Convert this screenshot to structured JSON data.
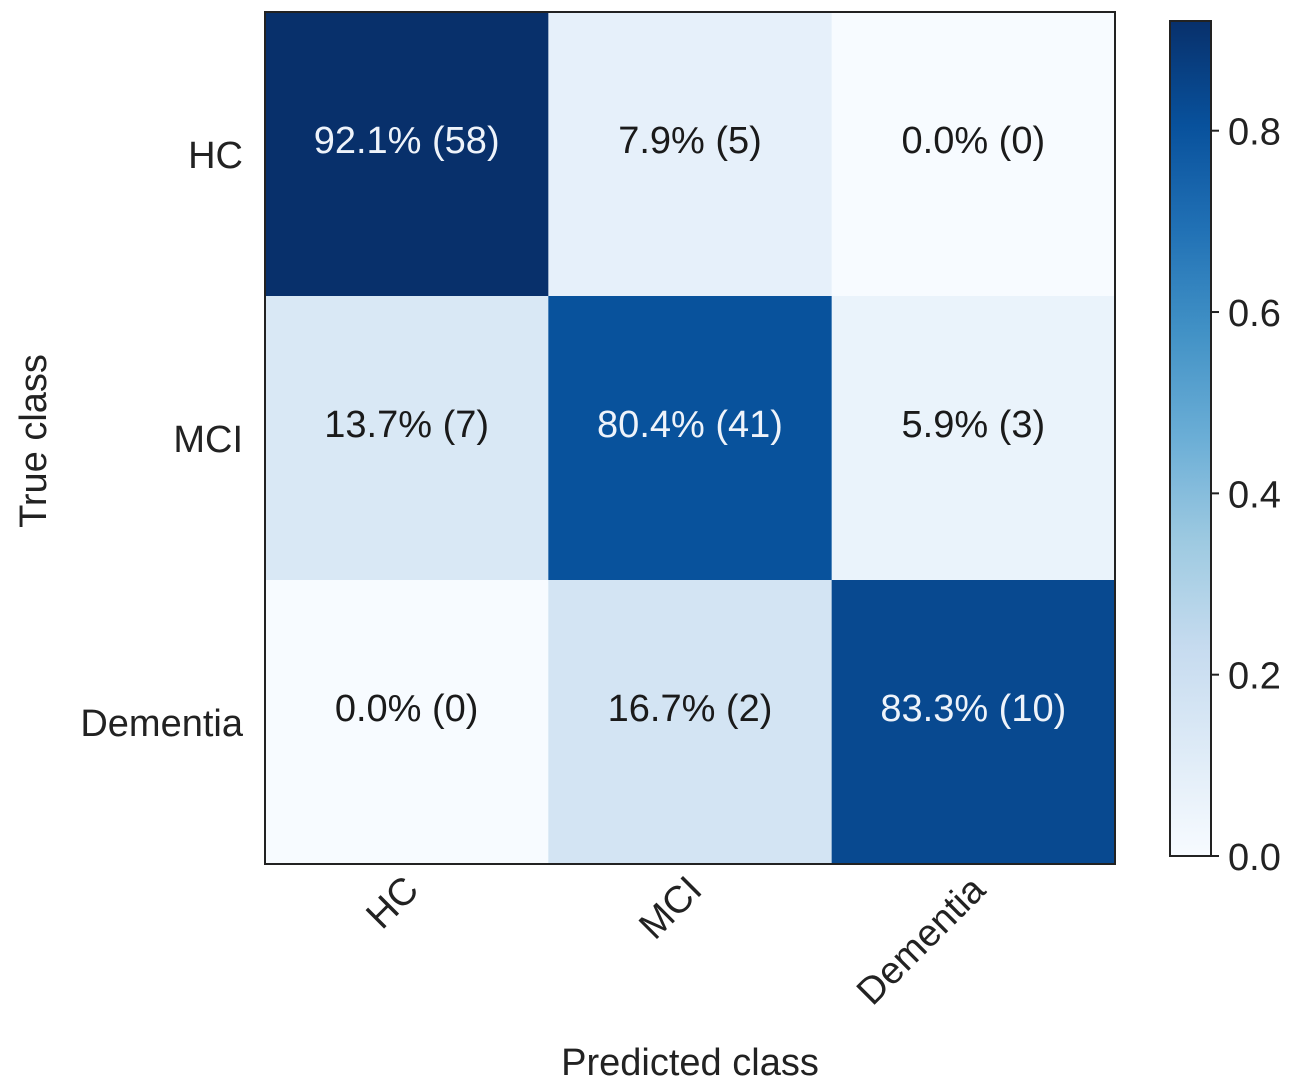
{
  "chart_data": {
    "type": "heatmap",
    "subtype": "confusion_matrix",
    "title": "",
    "xlabel": "Predicted class",
    "ylabel": "True class",
    "x_categories": [
      "HC",
      "MCI",
      "Dementia"
    ],
    "y_categories": [
      "HC",
      "MCI",
      "Dementia"
    ],
    "values": [
      [
        0.921,
        0.079,
        0.0
      ],
      [
        0.137,
        0.804,
        0.059
      ],
      [
        0.0,
        0.167,
        0.833
      ]
    ],
    "cell_labels": [
      [
        "92.1% (58)",
        "7.9% (5)",
        "0.0% (0)"
      ],
      [
        "13.7% (7)",
        "80.4% (41)",
        "5.9% (3)"
      ],
      [
        "0.0% (0)",
        "16.7% (2)",
        "83.3% (10)"
      ]
    ],
    "colorbar": {
      "range": [
        0.0,
        0.921
      ],
      "ticks": [
        0.0,
        0.2,
        0.4,
        0.6,
        0.8
      ],
      "tick_labels": [
        "0.0",
        "0.2",
        "0.4",
        "0.6",
        "0.8"
      ]
    },
    "colormap": "Blues",
    "colors": {
      "low": "#f7fbff",
      "high": "#08306b",
      "text_dark": "#1a1a1a",
      "text_light": "#eef3fa",
      "axis": "#222222"
    }
  }
}
